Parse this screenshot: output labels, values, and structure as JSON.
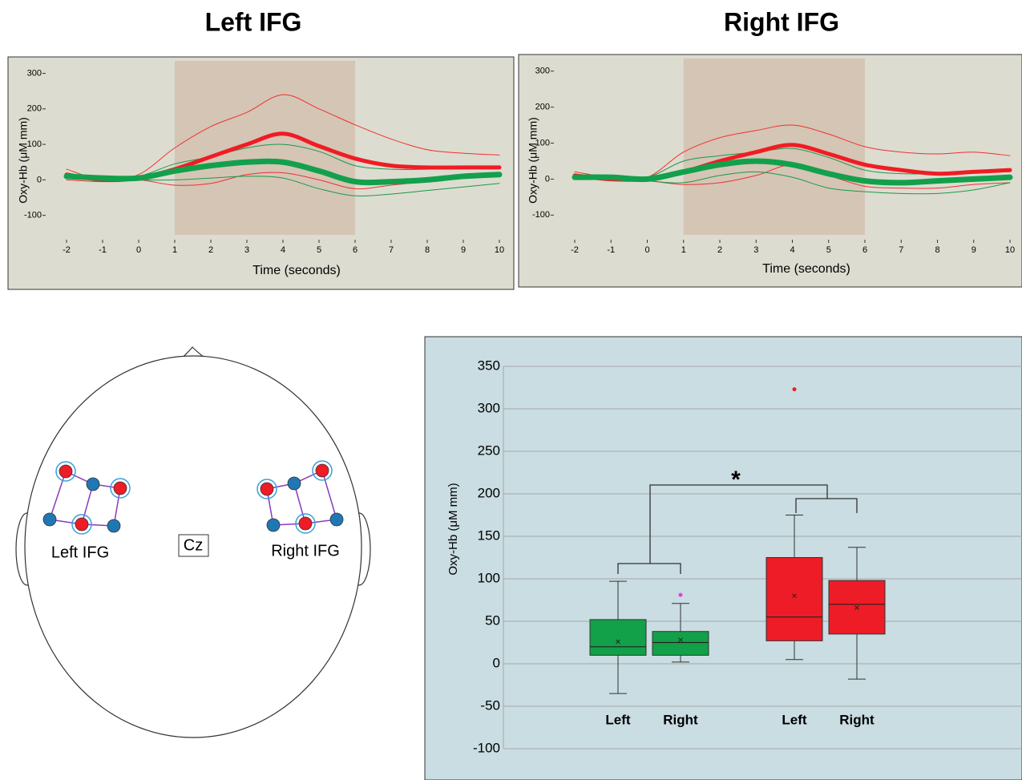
{
  "chart_data": [
    {
      "type": "line",
      "title": "Left IFG",
      "xlabel": "Time (seconds)",
      "ylabel": "Oxy-Hb (μM mm)",
      "x": [
        -2,
        -1,
        0,
        1,
        2,
        3,
        4,
        5,
        6,
        7,
        8,
        9,
        10
      ],
      "xlim": [
        -2,
        10
      ],
      "xticks": [
        -2,
        -1,
        0,
        1,
        2,
        3,
        4,
        5,
        6,
        7,
        8,
        9,
        10
      ],
      "ylim": [
        -155,
        335
      ],
      "yticks": [
        -100,
        0,
        100,
        200,
        300
      ],
      "background": "#dddcd0",
      "shaded_region": [
        1,
        6
      ],
      "shade_color": "#d5c5b5",
      "series": [
        {
          "color": "#f03030",
          "line_width": 1,
          "values": [
            30,
            0,
            15,
            90,
            150,
            190,
            240,
            200,
            155,
            115,
            85,
            75,
            70
          ]
        },
        {
          "color": "#f03030",
          "line_width": 1,
          "values": [
            0,
            -5,
            0,
            -15,
            -10,
            15,
            20,
            0,
            -25,
            -15,
            -5,
            5,
            10
          ]
        },
        {
          "color": "#1a9a4a",
          "line_width": 1,
          "values": [
            10,
            5,
            10,
            45,
            65,
            90,
            100,
            80,
            40,
            30,
            30,
            35,
            35
          ]
        },
        {
          "color": "#1a9a4a",
          "line_width": 1,
          "values": [
            10,
            5,
            0,
            0,
            5,
            10,
            5,
            -25,
            -45,
            -40,
            -30,
            -20,
            -10
          ]
        },
        {
          "color": "#f01c24",
          "line_width": 5,
          "values": [
            15,
            0,
            5,
            30,
            65,
            100,
            130,
            95,
            60,
            40,
            35,
            35,
            35
          ]
        },
        {
          "color": "#13a04c",
          "line_width": 7,
          "values": [
            10,
            5,
            5,
            25,
            40,
            50,
            50,
            25,
            -5,
            -5,
            0,
            10,
            15
          ]
        }
      ]
    },
    {
      "type": "line",
      "title": "Right IFG",
      "xlabel": "Time (seconds)",
      "ylabel": "Oxy-Hb (μM mm)",
      "x": [
        -2,
        -1,
        0,
        1,
        2,
        3,
        4,
        5,
        6,
        7,
        8,
        9,
        10
      ],
      "xlim": [
        -2,
        10
      ],
      "xticks": [
        -2,
        -1,
        0,
        1,
        2,
        3,
        4,
        5,
        6,
        7,
        8,
        9,
        10
      ],
      "ylim": [
        -155,
        335
      ],
      "yticks": [
        -100,
        0,
        100,
        200,
        300
      ],
      "background": "#dddcd0",
      "shaded_region": [
        1,
        6
      ],
      "shade_color": "#d5c5b5",
      "series": [
        {
          "color": "#f03030",
          "line_width": 1,
          "values": [
            20,
            5,
            5,
            75,
            115,
            135,
            150,
            125,
            90,
            75,
            70,
            75,
            65
          ]
        },
        {
          "color": "#f03030",
          "line_width": 1,
          "values": [
            5,
            -5,
            -5,
            -15,
            -10,
            10,
            40,
            10,
            -20,
            -25,
            -25,
            -15,
            -10
          ]
        },
        {
          "color": "#1a9a4a",
          "line_width": 1,
          "values": [
            5,
            5,
            5,
            50,
            65,
            75,
            85,
            60,
            25,
            15,
            15,
            20,
            20
          ]
        },
        {
          "color": "#1a9a4a",
          "line_width": 1,
          "values": [
            5,
            0,
            -5,
            -10,
            10,
            20,
            5,
            -25,
            -35,
            -40,
            -40,
            -30,
            -10
          ]
        },
        {
          "color": "#f01c24",
          "line_width": 5,
          "values": [
            10,
            0,
            0,
            20,
            50,
            75,
            95,
            70,
            40,
            25,
            15,
            20,
            25
          ]
        },
        {
          "color": "#13a04c",
          "line_width": 7,
          "values": [
            5,
            5,
            0,
            20,
            40,
            50,
            40,
            15,
            -5,
            -10,
            -5,
            0,
            5
          ]
        }
      ]
    },
    {
      "type": "box",
      "ylabel": "Oxy-Hb (μM mm)",
      "annotation": "*",
      "categories": [
        "Left",
        "Right",
        "Left",
        "Right"
      ],
      "ylim": [
        -100,
        350
      ],
      "yticks": [
        -100,
        -50,
        0,
        50,
        100,
        150,
        200,
        250,
        300,
        350
      ],
      "grid": true,
      "background": "#c9dde2",
      "boxes": [
        {
          "color": "#12a049",
          "min": -35,
          "q1": 10,
          "median": 20,
          "q3": 52,
          "max": 97,
          "mean": 26,
          "outliers": [],
          "outlier_color": "#e040e0"
        },
        {
          "color": "#12a049",
          "min": 2,
          "q1": 10,
          "median": 25,
          "q3": 38,
          "max": 71,
          "mean": 28,
          "outliers": [
            81
          ],
          "outlier_color": "#e040e0"
        },
        {
          "color": "#ee1c26",
          "min": 5,
          "q1": 27,
          "median": 55,
          "q3": 125,
          "max": 175,
          "mean": 80,
          "outliers": [
            323
          ],
          "outlier_color": "#ee1c26"
        },
        {
          "color": "#ee1c26",
          "min": -18,
          "q1": 35,
          "median": 70,
          "q3": 98,
          "max": 137,
          "mean": 66,
          "outliers": [],
          "outlier_color": "#ee1c26"
        }
      ]
    }
  ],
  "diagram": {
    "left_label": "Left IFG",
    "center_label": "Cz",
    "right_label": "Right IFG"
  }
}
